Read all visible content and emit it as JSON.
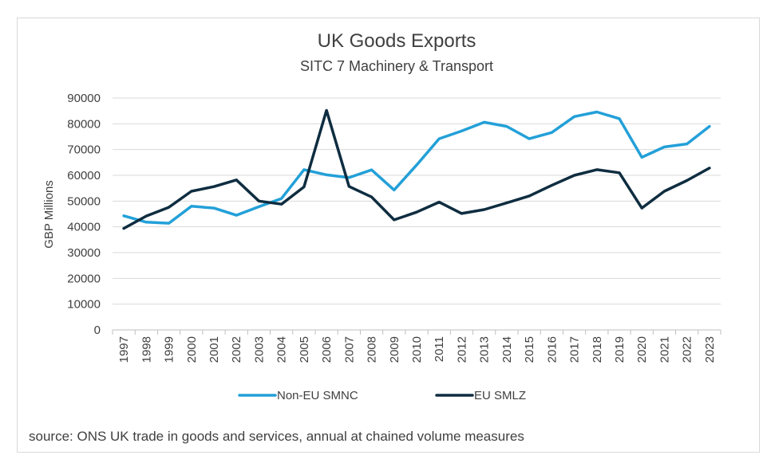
{
  "colors": {
    "non_eu": "#23a0d8",
    "eu": "#0f2d40",
    "grid": "#d9d9d9",
    "text": "#404040"
  },
  "source_note": "source: ONS UK trade in goods and services, annual at chained volume measures",
  "chart_data": {
    "type": "line",
    "title": "UK Goods Exports",
    "subtitle": "SITC 7 Machinery & Transport",
    "xlabel": "",
    "ylabel": "GBP Millions",
    "ylim": [
      0,
      90000
    ],
    "yticks": [
      0,
      10000,
      20000,
      30000,
      40000,
      50000,
      60000,
      70000,
      80000,
      90000
    ],
    "grid": true,
    "legend_position": "bottom",
    "x": [
      "1997",
      "1998",
      "1999",
      "2000",
      "2001",
      "2002",
      "2003",
      "2004",
      "2005",
      "2006",
      "2007",
      "2008",
      "2009",
      "2010",
      "2011",
      "2012",
      "2013",
      "2014",
      "2015",
      "2016",
      "2017",
      "2018",
      "2019",
      "2020",
      "2021",
      "2022",
      "2023"
    ],
    "series": [
      {
        "name": "Non-EU SMNC",
        "color": "#23a0d8",
        "values": [
          44300,
          41800,
          41400,
          48000,
          47300,
          44500,
          47800,
          51000,
          62200,
          60200,
          59100,
          62100,
          54300,
          64000,
          74200,
          77200,
          80600,
          79000,
          74200,
          76600,
          82800,
          84600,
          82000,
          67000,
          71000,
          72200,
          79000
        ]
      },
      {
        "name": "EU SMLZ",
        "color": "#0f2d40",
        "values": [
          39400,
          44200,
          47600,
          53800,
          55600,
          58200,
          50000,
          48800,
          55500,
          85200,
          55700,
          51600,
          42700,
          45700,
          49600,
          45200,
          46700,
          49300,
          52000,
          56100,
          60000,
          62200,
          61000,
          47300,
          53800,
          58000,
          62800
        ]
      }
    ]
  }
}
